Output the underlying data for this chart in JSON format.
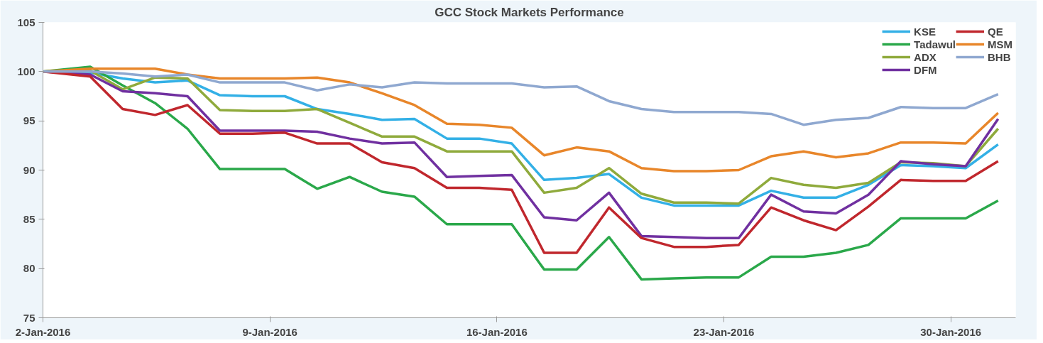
{
  "chart_data": {
    "type": "line",
    "title": "GCC Stock Markets Performance",
    "x": [
      "2016-01-02",
      "2016-01-03T11:00",
      "2016-01-04T11:00",
      "2016-01-05T11:00",
      "2016-01-06T11:00",
      "2016-01-07T11:00",
      "2016-01-08T11:00",
      "2016-01-09T11:00",
      "2016-01-10T11:00",
      "2016-01-11T11:00",
      "2016-01-12T11:00",
      "2016-01-13T11:00",
      "2016-01-14T11:00",
      "2016-01-15T11:00",
      "2016-01-16T11:00",
      "2016-01-17T11:00",
      "2016-01-18T11:00",
      "2016-01-19T11:00",
      "2016-01-20T11:00",
      "2016-01-21T11:00",
      "2016-01-22T11:00",
      "2016-01-23T11:00",
      "2016-01-24T11:00",
      "2016-01-25T11:00",
      "2016-01-26T11:00",
      "2016-01-27T11:00",
      "2016-01-28T11:00",
      "2016-01-29T11:00",
      "2016-01-30T11:00",
      "2016-01-31T11:00"
    ],
    "series": [
      {
        "name": "KSE",
        "color": "#33b0e6",
        "values": [
          100,
          99.9,
          99.3,
          98.9,
          99.1,
          97.6,
          97.5,
          97.5,
          96.2,
          95.7,
          95.1,
          95.2,
          93.2,
          93.2,
          92.7,
          89.0,
          89.2,
          89.6,
          87.2,
          86.4,
          86.4,
          86.4,
          87.9,
          87.2,
          87.2,
          88.5,
          90.5,
          90.4,
          90.2,
          92.6
        ]
      },
      {
        "name": "Tadawul",
        "color": "#2aa84a",
        "values": [
          100,
          100.5,
          98.6,
          96.8,
          94.2,
          90.1,
          90.1,
          90.1,
          88.1,
          89.3,
          87.8,
          87.3,
          84.5,
          84.5,
          84.5,
          79.9,
          79.9,
          83.2,
          78.9,
          79.0,
          79.1,
          79.1,
          81.2,
          81.2,
          81.6,
          82.4,
          85.1,
          85.1,
          85.1,
          86.9
        ]
      },
      {
        "name": "ADX",
        "color": "#8faa3c",
        "values": [
          100,
          100.1,
          98.2,
          99.4,
          99.3,
          96.1,
          96.0,
          96.0,
          96.2,
          94.8,
          93.4,
          93.4,
          91.9,
          91.9,
          91.9,
          87.7,
          88.2,
          90.2,
          87.6,
          86.7,
          86.7,
          86.6,
          89.2,
          88.5,
          88.2,
          88.7,
          90.8,
          90.7,
          90.4,
          94.2
        ]
      },
      {
        "name": "DFM",
        "color": "#7030a0",
        "values": [
          100,
          99.7,
          98.0,
          97.8,
          97.5,
          94.0,
          94.0,
          94.0,
          93.9,
          93.2,
          92.7,
          92.8,
          89.3,
          89.4,
          89.5,
          85.2,
          84.9,
          87.7,
          83.3,
          83.2,
          83.1,
          83.1,
          87.5,
          85.8,
          85.6,
          87.5,
          90.9,
          90.6,
          90.4,
          95.2
        ]
      },
      {
        "name": "QE",
        "color": "#c0272d",
        "values": [
          100,
          99.5,
          96.2,
          95.6,
          96.6,
          93.7,
          93.7,
          93.8,
          92.7,
          92.7,
          90.8,
          90.2,
          88.2,
          88.2,
          88.0,
          81.6,
          81.6,
          86.2,
          83.1,
          82.2,
          82.2,
          82.4,
          86.2,
          84.9,
          83.9,
          86.3,
          89.0,
          88.9,
          88.9,
          90.9
        ]
      },
      {
        "name": "MSM",
        "color": "#e8862a",
        "values": [
          100,
          100.3,
          100.3,
          100.3,
          99.7,
          99.3,
          99.3,
          99.3,
          99.4,
          98.9,
          97.8,
          96.6,
          94.7,
          94.6,
          94.3,
          91.5,
          92.3,
          91.9,
          90.2,
          89.9,
          89.9,
          90.0,
          91.4,
          91.9,
          91.3,
          91.7,
          92.8,
          92.8,
          92.7,
          95.8
        ]
      },
      {
        "name": "BHB",
        "color": "#8fa8d0",
        "values": [
          100,
          100,
          99.8,
          99.5,
          99.7,
          98.9,
          98.9,
          98.9,
          98.1,
          98.7,
          98.4,
          98.9,
          98.8,
          98.8,
          98.8,
          98.4,
          98.5,
          97.0,
          96.2,
          95.9,
          95.9,
          95.9,
          95.7,
          94.6,
          95.1,
          95.3,
          96.4,
          96.3,
          96.3,
          97.7
        ]
      }
    ],
    "xlim": [
      "2016-01-02",
      "2016-02-01"
    ],
    "xticks": [
      {
        "value": "2016-01-02",
        "label": "2-Jan-2016"
      },
      {
        "value": "2016-01-09",
        "label": "9-Jan-2016"
      },
      {
        "value": "2016-01-16",
        "label": "16-Jan-2016"
      },
      {
        "value": "2016-01-23",
        "label": "23-Jan-2016"
      },
      {
        "value": "2016-01-30",
        "label": "30-Jan-2016"
      }
    ],
    "ylim": [
      75,
      105
    ],
    "yticks": [
      75,
      80,
      85,
      90,
      95,
      100,
      105
    ],
    "grid": false,
    "legend": "top right",
    "marker": "none",
    "line_style": "solid"
  }
}
